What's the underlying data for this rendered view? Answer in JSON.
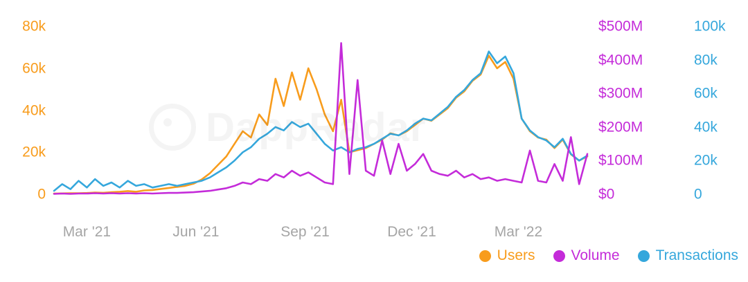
{
  "watermark": {
    "text": "DappRadar"
  },
  "legend": {
    "items": [
      {
        "label": "Users",
        "color": "#F89C1C"
      },
      {
        "label": "Volume",
        "color": "#C42BD9"
      },
      {
        "label": "Transactions",
        "color": "#35A7DC"
      }
    ]
  },
  "axes": {
    "left_users": {
      "color": "#F89C1C",
      "ticks": [
        "0",
        "20k",
        "40k",
        "60k",
        "80k"
      ],
      "max": 80
    },
    "right_volume": {
      "color": "#C42BD9",
      "ticks": [
        "$0",
        "$100M",
        "$200M",
        "$300M",
        "$400M",
        "$500M"
      ],
      "max": 500
    },
    "right_transactions": {
      "color": "#35A7DC",
      "ticks": [
        "0",
        "20k",
        "40k",
        "60k",
        "80k",
        "100k"
      ],
      "max": 100
    },
    "x": {
      "color": "#A5A5A5",
      "ticks": [
        {
          "label": "Mar '21",
          "i": 4.0
        },
        {
          "label": "Jun '21",
          "i": 17.3
        },
        {
          "label": "Sep '21",
          "i": 30.6
        },
        {
          "label": "Dec '21",
          "i": 43.6
        },
        {
          "label": "Mar '22",
          "i": 56.6
        }
      ]
    }
  },
  "chart_data": {
    "type": "line",
    "title": "",
    "x_unit": "weekly samples, Feb 2021 - May 2022",
    "x_tick_labels": [
      "Mar '21",
      "Jun '21",
      "Sep '21",
      "Dec '21",
      "Mar '22"
    ],
    "axis_ranges": {
      "left_users_k": [
        0,
        80
      ],
      "right_volume_millions_usd": [
        0,
        500
      ],
      "right_transactions_k": [
        0,
        100
      ]
    },
    "grid": false,
    "legend_position": "bottom-right",
    "series": [
      {
        "name": "Users",
        "color": "#F89C1C",
        "axis": "left",
        "unit": "thousand users",
        "axis_max": 80,
        "values": [
          0.3,
          0.4,
          0.5,
          0.5,
          0.6,
          0.8,
          0.7,
          1.0,
          1.2,
          1.5,
          1.2,
          1.8,
          2.0,
          2.5,
          3.0,
          3.5,
          4.0,
          5.0,
          7.0,
          10,
          14,
          18,
          24,
          30,
          27,
          38,
          33,
          55,
          42,
          58,
          45,
          60,
          50,
          38,
          30,
          45,
          20,
          21,
          22,
          24,
          26,
          29,
          28,
          30,
          33,
          36,
          35,
          38,
          41,
          46,
          49,
          54,
          57,
          66,
          60,
          63,
          55,
          36,
          30,
          27,
          26,
          22,
          26,
          19,
          16,
          18
        ]
      },
      {
        "name": "Volume",
        "color": "#C42BD9",
        "axis": "right-volume",
        "unit": "million USD",
        "axis_max": 500,
        "values": [
          1,
          2,
          1,
          2,
          2,
          3,
          2,
          3,
          2,
          3,
          2,
          3,
          2,
          3,
          4,
          4,
          5,
          6,
          8,
          10,
          14,
          18,
          25,
          35,
          30,
          45,
          40,
          60,
          50,
          70,
          55,
          65,
          50,
          35,
          30,
          450,
          60,
          340,
          70,
          55,
          160,
          60,
          150,
          70,
          90,
          120,
          70,
          60,
          55,
          70,
          50,
          60,
          45,
          50,
          40,
          45,
          40,
          35,
          130,
          40,
          35,
          90,
          40,
          170,
          30,
          120
        ]
      },
      {
        "name": "Transactions",
        "color": "#35A7DC",
        "axis": "right-transactions",
        "unit": "thousand transactions",
        "axis_max": 100,
        "values": [
          2,
          6,
          3,
          8,
          4,
          9,
          5,
          7,
          4,
          8,
          5,
          6,
          4,
          5,
          6,
          5,
          6,
          7,
          8,
          10,
          13,
          16,
          20,
          25,
          28,
          33,
          36,
          40,
          38,
          43,
          40,
          42,
          36,
          30,
          26,
          28,
          25,
          27,
          28,
          30,
          33,
          36,
          35,
          38,
          42,
          45,
          44,
          48,
          52,
          58,
          62,
          68,
          72,
          85,
          78,
          82,
          72,
          45,
          38,
          34,
          32,
          28,
          33,
          24,
          20,
          23
        ]
      }
    ]
  }
}
